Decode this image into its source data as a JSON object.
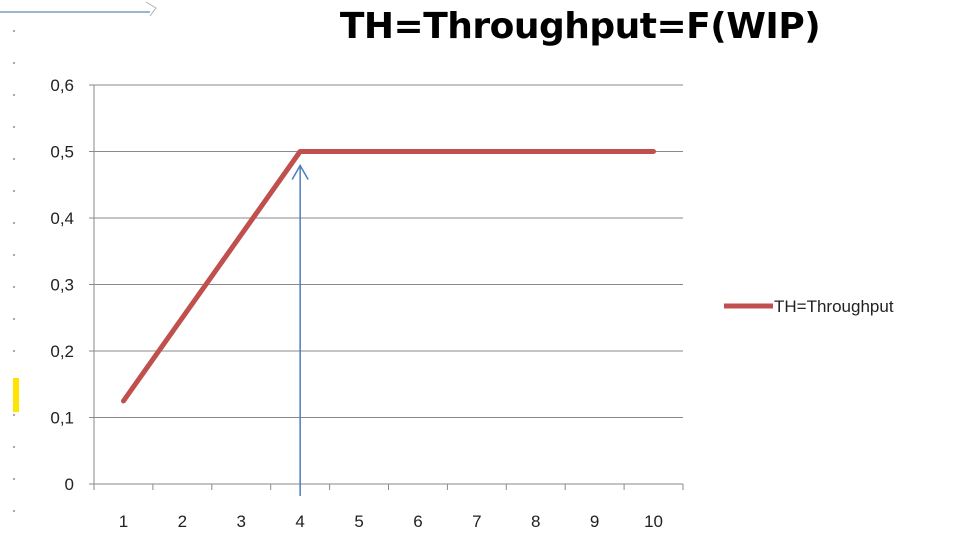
{
  "chart_data": {
    "type": "line",
    "title": "TH=Throughput=F(WIP)",
    "x": [
      1,
      2,
      3,
      4,
      5,
      6,
      7,
      8,
      9,
      10
    ],
    "series": [
      {
        "name": "TH=Throughput",
        "color": "#c0504d",
        "values": [
          0.125,
          0.25,
          0.375,
          0.5,
          0.5,
          0.5,
          0.5,
          0.5,
          0.5,
          0.5
        ]
      }
    ],
    "y_ticks": [
      "0",
      "0,1",
      "0,2",
      "0,3",
      "0,4",
      "0,5",
      "0,6"
    ],
    "x_ticks": [
      "1",
      "2",
      "3",
      "4",
      "5",
      "6",
      "7",
      "8",
      "9",
      "10"
    ],
    "ylim": [
      0,
      0.6
    ],
    "grid": true,
    "legend": "right",
    "annotation": {
      "type": "arrow",
      "x": 4,
      "color": "#4a7ebb"
    }
  }
}
